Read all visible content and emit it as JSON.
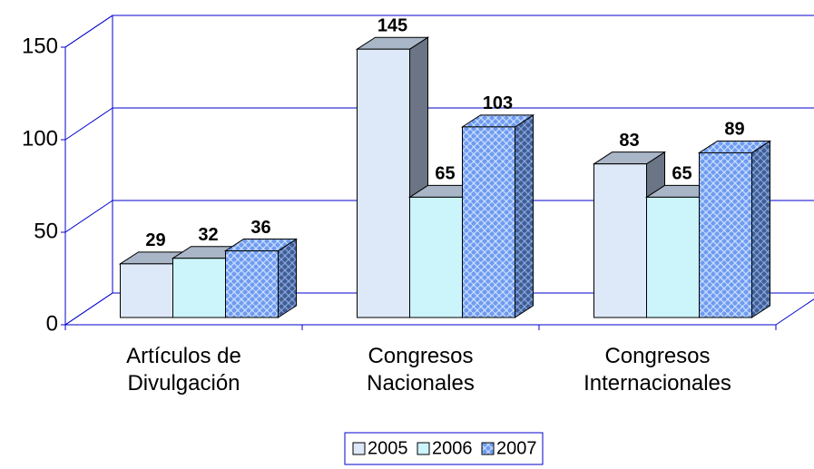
{
  "chart_data": {
    "type": "bar3d",
    "categories": [
      "Artículos de Divulgación",
      "Congresos Nacionales",
      "Congresos Internacionales"
    ],
    "series": [
      {
        "name": "2005",
        "color": "#dde8f8",
        "values": [
          29,
          145,
          83
        ]
      },
      {
        "name": "2006",
        "color": "#ccf4fb",
        "values": [
          32,
          65,
          65
        ]
      },
      {
        "name": "2007",
        "color": "#6f9cf0",
        "values": [
          36,
          103,
          89
        ]
      }
    ],
    "ylim": [
      0,
      150
    ],
    "yticks": [
      0,
      50,
      100,
      150
    ],
    "grid": true,
    "legend": "bottom"
  }
}
